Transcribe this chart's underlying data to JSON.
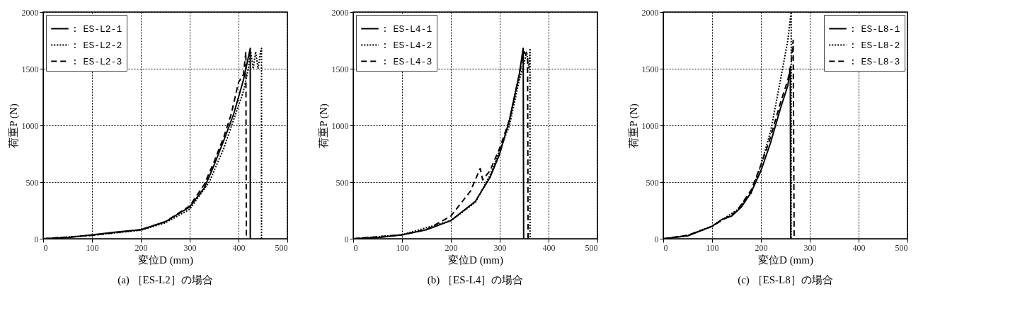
{
  "chart_data": [
    {
      "type": "line",
      "title": "(a) ［ES-L2］の場合",
      "xlabel": "変位D (mm)",
      "ylabel": "荷重P (N)",
      "xlim": [
        0,
        500
      ],
      "ylim": [
        0,
        2000
      ],
      "xticks": [
        0,
        100,
        200,
        300,
        400,
        500
      ],
      "yticks": [
        0,
        500,
        1000,
        1500,
        2000
      ],
      "grid": true,
      "legend": "top left",
      "series": [
        {
          "name": ": ES-L2-1",
          "color": "#000000",
          "line_style": "solid",
          "x": [
            0,
            50,
            100,
            150,
            200,
            250,
            300,
            330,
            350,
            370,
            390,
            410,
            420,
            424,
            424
          ],
          "values": [
            0,
            10,
            35,
            60,
            80,
            150,
            280,
            450,
            650,
            870,
            1100,
            1400,
            1600,
            1680,
            0
          ]
        },
        {
          "name": ": ES-L2-2",
          "color": "#000000",
          "line_style": "dotted",
          "x": [
            0,
            100,
            200,
            250,
            300,
            340,
            370,
            390,
            410,
            420,
            425,
            430,
            435,
            440,
            445,
            447,
            447
          ],
          "values": [
            0,
            30,
            75,
            140,
            260,
            500,
            800,
            1050,
            1300,
            1500,
            1650,
            1500,
            1650,
            1500,
            1650,
            1680,
            0
          ]
        },
        {
          "name": ": ES-L2-3",
          "color": "#000000",
          "line_style": "dashed",
          "x": [
            0,
            100,
            200,
            250,
            300,
            330,
            350,
            370,
            385,
            400,
            410,
            415,
            416
          ],
          "values": [
            0,
            30,
            80,
            150,
            290,
            480,
            680,
            900,
            1100,
            1380,
            1450,
            1650,
            0
          ]
        }
      ]
    },
    {
      "type": "line",
      "title": "(b) ［ES-L4］の場合",
      "xlabel": "変位D (mm)",
      "ylabel": "荷重P (N)",
      "xlim": [
        0,
        500
      ],
      "ylim": [
        0,
        2000
      ],
      "xticks": [
        0,
        100,
        200,
        300,
        400,
        500
      ],
      "yticks": [
        0,
        500,
        1000,
        1500,
        2000
      ],
      "grid": true,
      "legend": "top left",
      "series": [
        {
          "name": ": ES-L4-1",
          "color": "#000000",
          "line_style": "solid",
          "x": [
            0,
            50,
            100,
            150,
            200,
            250,
            280,
            300,
            320,
            340,
            348,
            349
          ],
          "values": [
            0,
            10,
            35,
            80,
            160,
            330,
            540,
            750,
            1050,
            1450,
            1680,
            0
          ]
        },
        {
          "name": ": ES-L4-2",
          "color": "#000000",
          "line_style": "dotted",
          "x": [
            0,
            100,
            200,
            250,
            280,
            300,
            320,
            340,
            350,
            355,
            360,
            362,
            362
          ],
          "values": [
            0,
            35,
            160,
            320,
            560,
            780,
            1000,
            1400,
            1550,
            1650,
            1500,
            1680,
            0
          ]
        },
        {
          "name": ": ES-L4-3",
          "color": "#000000",
          "line_style": "dashed",
          "x": [
            0,
            100,
            150,
            200,
            240,
            260,
            265,
            280,
            300,
            320,
            340,
            350,
            357,
            358
          ],
          "values": [
            0,
            35,
            80,
            200,
            420,
            620,
            520,
            600,
            800,
            1050,
            1450,
            1650,
            1600,
            0
          ]
        }
      ]
    },
    {
      "type": "line",
      "title": "(c) ［ES-L8］の場合",
      "xlabel": "変位D (mm)",
      "ylabel": "荷重P (N)",
      "xlim": [
        0,
        500
      ],
      "ylim": [
        0,
        2000
      ],
      "xticks": [
        0,
        100,
        200,
        300,
        400,
        500
      ],
      "yticks": [
        0,
        500,
        1000,
        1500,
        2000
      ],
      "grid": true,
      "legend": "top right",
      "series": [
        {
          "name": ": ES-L8-1",
          "color": "#000000",
          "line_style": "solid",
          "x": [
            0,
            50,
            100,
            120,
            140,
            160,
            180,
            200,
            220,
            240,
            255,
            260,
            261
          ],
          "values": [
            0,
            25,
            110,
            170,
            200,
            280,
            410,
            600,
            850,
            1150,
            1350,
            1500,
            0
          ]
        },
        {
          "name": ": ES-L8-2",
          "color": "#000000",
          "line_style": "dotted",
          "x": [
            0,
            50,
            100,
            150,
            180,
            200,
            220,
            240,
            255,
            262,
            262
          ],
          "values": [
            0,
            30,
            110,
            250,
            400,
            650,
            950,
            1400,
            1750,
            2000,
            0
          ]
        },
        {
          "name": ": ES-L8-3",
          "color": "#000000",
          "line_style": "dashed",
          "x": [
            0,
            50,
            100,
            150,
            180,
            200,
            220,
            240,
            255,
            262,
            266,
            268
          ],
          "values": [
            0,
            30,
            110,
            240,
            430,
            650,
            900,
            1200,
            1400,
            1550,
            1750,
            0
          ]
        }
      ]
    }
  ]
}
